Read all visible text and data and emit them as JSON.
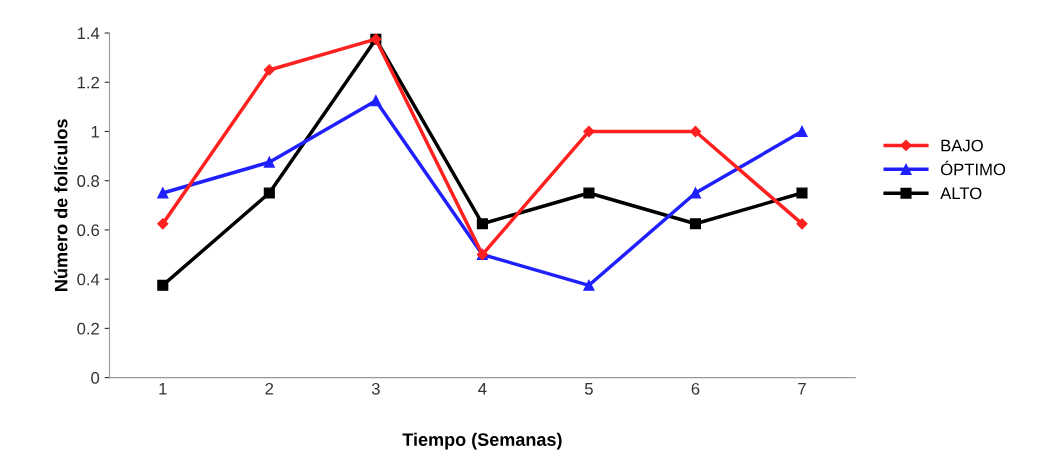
{
  "chart_data": {
    "type": "line",
    "xlabel": "Tiempo (Semanas)",
    "ylabel": "Número de folículos",
    "categories": [
      "1",
      "2",
      "3",
      "4",
      "5",
      "6",
      "7"
    ],
    "series": [
      {
        "name": "BAJO",
        "color": "#ff2020",
        "marker": "diamond",
        "values": [
          0.625,
          1.25,
          1.375,
          0.5,
          1.0,
          1.0,
          0.625
        ]
      },
      {
        "name": "ÓPTIMO",
        "color": "#2020ff",
        "marker": "triangle",
        "values": [
          0.75,
          0.875,
          1.125,
          0.5,
          0.375,
          0.75,
          1.0
        ]
      },
      {
        "name": "ALTO",
        "color": "#000000",
        "marker": "square",
        "values": [
          0.375,
          0.75,
          1.375,
          0.625,
          0.75,
          0.625,
          0.75
        ]
      }
    ],
    "ylim": [
      0,
      1.4
    ],
    "yticks": [
      0,
      0.2,
      0.4,
      0.6,
      0.8,
      1,
      1.2,
      1.4
    ],
    "grid": false,
    "legend": "right",
    "line_style": "solid"
  }
}
